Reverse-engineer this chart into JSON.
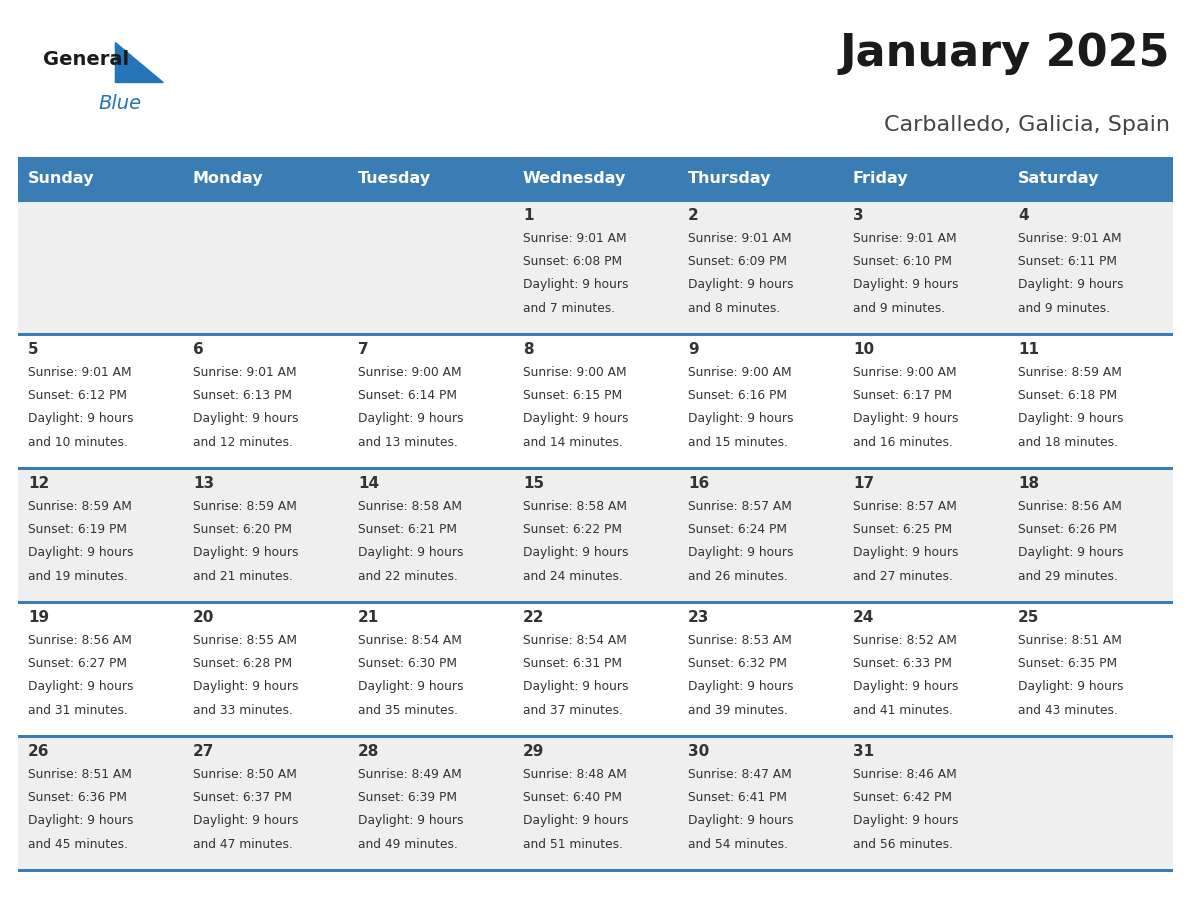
{
  "title": "January 2025",
  "subtitle": "Carballedo, Galicia, Spain",
  "days_of_week": [
    "Sunday",
    "Monday",
    "Tuesday",
    "Wednesday",
    "Thursday",
    "Friday",
    "Saturday"
  ],
  "header_bg": "#3A7DB5",
  "header_text_color": "#FFFFFF",
  "cell_bg_gray": "#EFEFEF",
  "cell_bg_white": "#FFFFFF",
  "cell_text_color": "#333333",
  "title_color": "#1A1A1A",
  "subtitle_color": "#444444",
  "border_color": "#3A7DB5",
  "logo_text_color": "#1A1A1A",
  "logo_blue_color": "#2575B8",
  "calendar_data": [
    [
      null,
      null,
      null,
      {
        "day": 1,
        "sunrise": "9:01 AM",
        "sunset": "6:08 PM",
        "dl1": "9 hours",
        "dl2": "and 7 minutes."
      },
      {
        "day": 2,
        "sunrise": "9:01 AM",
        "sunset": "6:09 PM",
        "dl1": "9 hours",
        "dl2": "and 8 minutes."
      },
      {
        "day": 3,
        "sunrise": "9:01 AM",
        "sunset": "6:10 PM",
        "dl1": "9 hours",
        "dl2": "and 9 minutes."
      },
      {
        "day": 4,
        "sunrise": "9:01 AM",
        "sunset": "6:11 PM",
        "dl1": "9 hours",
        "dl2": "and 9 minutes."
      }
    ],
    [
      {
        "day": 5,
        "sunrise": "9:01 AM",
        "sunset": "6:12 PM",
        "dl1": "9 hours",
        "dl2": "and 10 minutes."
      },
      {
        "day": 6,
        "sunrise": "9:01 AM",
        "sunset": "6:13 PM",
        "dl1": "9 hours",
        "dl2": "and 12 minutes."
      },
      {
        "day": 7,
        "sunrise": "9:00 AM",
        "sunset": "6:14 PM",
        "dl1": "9 hours",
        "dl2": "and 13 minutes."
      },
      {
        "day": 8,
        "sunrise": "9:00 AM",
        "sunset": "6:15 PM",
        "dl1": "9 hours",
        "dl2": "and 14 minutes."
      },
      {
        "day": 9,
        "sunrise": "9:00 AM",
        "sunset": "6:16 PM",
        "dl1": "9 hours",
        "dl2": "and 15 minutes."
      },
      {
        "day": 10,
        "sunrise": "9:00 AM",
        "sunset": "6:17 PM",
        "dl1": "9 hours",
        "dl2": "and 16 minutes."
      },
      {
        "day": 11,
        "sunrise": "8:59 AM",
        "sunset": "6:18 PM",
        "dl1": "9 hours",
        "dl2": "and 18 minutes."
      }
    ],
    [
      {
        "day": 12,
        "sunrise": "8:59 AM",
        "sunset": "6:19 PM",
        "dl1": "9 hours",
        "dl2": "and 19 minutes."
      },
      {
        "day": 13,
        "sunrise": "8:59 AM",
        "sunset": "6:20 PM",
        "dl1": "9 hours",
        "dl2": "and 21 minutes."
      },
      {
        "day": 14,
        "sunrise": "8:58 AM",
        "sunset": "6:21 PM",
        "dl1": "9 hours",
        "dl2": "and 22 minutes."
      },
      {
        "day": 15,
        "sunrise": "8:58 AM",
        "sunset": "6:22 PM",
        "dl1": "9 hours",
        "dl2": "and 24 minutes."
      },
      {
        "day": 16,
        "sunrise": "8:57 AM",
        "sunset": "6:24 PM",
        "dl1": "9 hours",
        "dl2": "and 26 minutes."
      },
      {
        "day": 17,
        "sunrise": "8:57 AM",
        "sunset": "6:25 PM",
        "dl1": "9 hours",
        "dl2": "and 27 minutes."
      },
      {
        "day": 18,
        "sunrise": "8:56 AM",
        "sunset": "6:26 PM",
        "dl1": "9 hours",
        "dl2": "and 29 minutes."
      }
    ],
    [
      {
        "day": 19,
        "sunrise": "8:56 AM",
        "sunset": "6:27 PM",
        "dl1": "9 hours",
        "dl2": "and 31 minutes."
      },
      {
        "day": 20,
        "sunrise": "8:55 AM",
        "sunset": "6:28 PM",
        "dl1": "9 hours",
        "dl2": "and 33 minutes."
      },
      {
        "day": 21,
        "sunrise": "8:54 AM",
        "sunset": "6:30 PM",
        "dl1": "9 hours",
        "dl2": "and 35 minutes."
      },
      {
        "day": 22,
        "sunrise": "8:54 AM",
        "sunset": "6:31 PM",
        "dl1": "9 hours",
        "dl2": "and 37 minutes."
      },
      {
        "day": 23,
        "sunrise": "8:53 AM",
        "sunset": "6:32 PM",
        "dl1": "9 hours",
        "dl2": "and 39 minutes."
      },
      {
        "day": 24,
        "sunrise": "8:52 AM",
        "sunset": "6:33 PM",
        "dl1": "9 hours",
        "dl2": "and 41 minutes."
      },
      {
        "day": 25,
        "sunrise": "8:51 AM",
        "sunset": "6:35 PM",
        "dl1": "9 hours",
        "dl2": "and 43 minutes."
      }
    ],
    [
      {
        "day": 26,
        "sunrise": "8:51 AM",
        "sunset": "6:36 PM",
        "dl1": "9 hours",
        "dl2": "and 45 minutes."
      },
      {
        "day": 27,
        "sunrise": "8:50 AM",
        "sunset": "6:37 PM",
        "dl1": "9 hours",
        "dl2": "and 47 minutes."
      },
      {
        "day": 28,
        "sunrise": "8:49 AM",
        "sunset": "6:39 PM",
        "dl1": "9 hours",
        "dl2": "and 49 minutes."
      },
      {
        "day": 29,
        "sunrise": "8:48 AM",
        "sunset": "6:40 PM",
        "dl1": "9 hours",
        "dl2": "and 51 minutes."
      },
      {
        "day": 30,
        "sunrise": "8:47 AM",
        "sunset": "6:41 PM",
        "dl1": "9 hours",
        "dl2": "and 54 minutes."
      },
      {
        "day": 31,
        "sunrise": "8:46 AM",
        "sunset": "6:42 PM",
        "dl1": "9 hours",
        "dl2": "and 56 minutes."
      },
      null
    ]
  ],
  "row_bg": [
    "gray",
    "white",
    "gray",
    "white",
    "gray"
  ]
}
